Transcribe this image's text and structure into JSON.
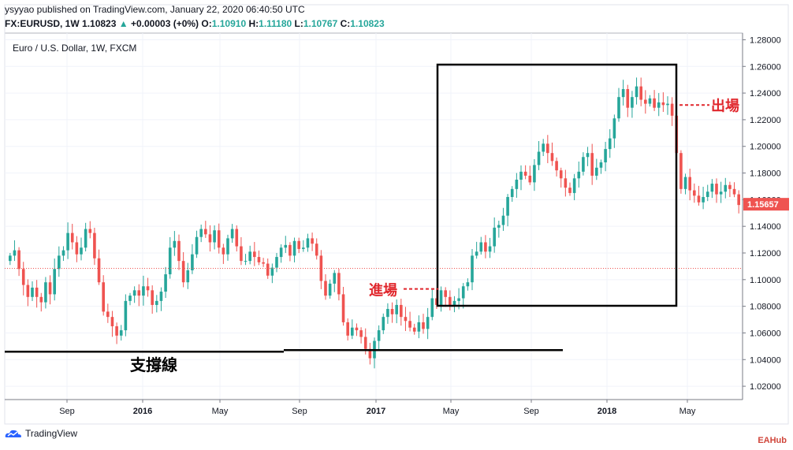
{
  "header": {
    "publisher_line": "ysyyao published on TradingView.com, January 22, 2020 06:40:50 UTC",
    "symbol": "FX:EURUSD, 1W",
    "last": "1.10823",
    "change": "+0.00003 (+0%)",
    "open_label": "O:",
    "open": "1.10910",
    "high_label": "H:",
    "high": "1.11180",
    "low_label": "L:",
    "low": "1.10767",
    "close_label": "C:",
    "close": "1.10823"
  },
  "legend_title": "Euro / U.S. Dollar, 1W, FXCM",
  "footer": {
    "brand": "TradingView",
    "watermark": "EAHub"
  },
  "colors": {
    "up": "#26a69a",
    "down": "#ef5350",
    "annot": "#e0262c",
    "price_tag": "#ef5350"
  },
  "annotations": {
    "entry_label": "進場",
    "exit_label": "出場",
    "support_label": "支撐線"
  },
  "chart_data": {
    "type": "candlestick",
    "title": "Euro / U.S. Dollar, 1W, FXCM",
    "ylim": [
      1.01,
      1.285
    ],
    "y_ticks": [
      "1.28000",
      "1.26000",
      "1.24000",
      "1.22000",
      "1.20000",
      "1.18000",
      "1.16000",
      "1.14000",
      "1.12000",
      "1.10000",
      "1.08000",
      "1.06000",
      "1.04000",
      "1.02000"
    ],
    "x_ticks": [
      "Sep",
      "2016",
      "May",
      "Sep",
      "2017",
      "May",
      "Sep",
      "2018",
      "May"
    ],
    "current_price_label": "1.15657",
    "reference_price": 1.1085,
    "support_level": 1.0465,
    "entry_price": 1.093,
    "exit_price": 1.231,
    "closes": [
      1.118,
      1.122,
      1.108,
      1.096,
      1.087,
      1.094,
      1.087,
      1.083,
      1.098,
      1.089,
      1.108,
      1.118,
      1.122,
      1.135,
      1.128,
      1.119,
      1.124,
      1.138,
      1.135,
      1.116,
      1.098,
      1.076,
      1.072,
      1.065,
      1.058,
      1.062,
      1.084,
      1.088,
      1.092,
      1.088,
      1.095,
      1.092,
      1.081,
      1.084,
      1.091,
      1.104,
      1.124,
      1.129,
      1.114,
      1.098,
      1.107,
      1.119,
      1.132,
      1.138,
      1.134,
      1.128,
      1.137,
      1.124,
      1.119,
      1.131,
      1.138,
      1.125,
      1.114,
      1.114,
      1.121,
      1.117,
      1.113,
      1.112,
      1.103,
      1.109,
      1.117,
      1.124,
      1.126,
      1.118,
      1.129,
      1.123,
      1.124,
      1.131,
      1.127,
      1.118,
      1.099,
      1.088,
      1.097,
      1.105,
      1.089,
      1.068,
      1.058,
      1.064,
      1.062,
      1.057,
      1.048,
      1.041,
      1.054,
      1.062,
      1.072,
      1.078,
      1.074,
      1.081,
      1.072,
      1.069,
      1.064,
      1.061,
      1.068,
      1.063,
      1.072,
      1.086,
      1.081,
      1.092,
      1.087,
      1.081,
      1.084,
      1.086,
      1.095,
      1.098,
      1.118,
      1.121,
      1.128,
      1.121,
      1.125,
      1.139,
      1.141,
      1.148,
      1.162,
      1.168,
      1.175,
      1.181,
      1.178,
      1.173,
      1.186,
      1.196,
      1.202,
      1.195,
      1.189,
      1.182,
      1.176,
      1.169,
      1.165,
      1.176,
      1.181,
      1.192,
      1.195,
      1.178,
      1.184,
      1.188,
      1.198,
      1.206,
      1.221,
      1.237,
      1.243,
      1.229,
      1.237,
      1.245,
      1.235,
      1.232,
      1.236,
      1.229,
      1.233,
      1.231,
      1.232,
      1.223,
      1.195,
      1.168,
      1.177,
      1.167,
      1.163,
      1.158,
      1.162,
      1.166,
      1.172,
      1.164,
      1.166,
      1.171,
      1.168,
      1.164,
      1.156
    ]
  }
}
